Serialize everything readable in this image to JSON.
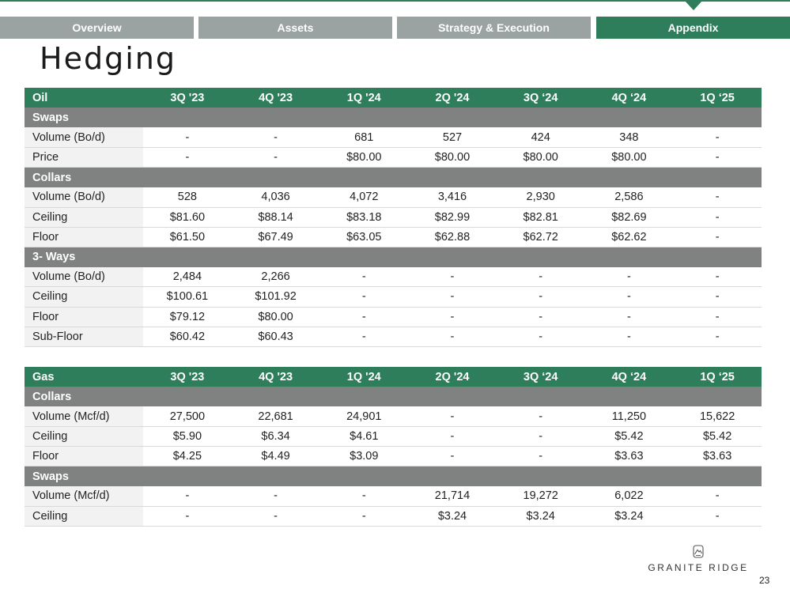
{
  "nav": {
    "tabs": [
      {
        "label": "Overview",
        "active": false
      },
      {
        "label": "Assets",
        "active": false
      },
      {
        "label": "Strategy & Execution",
        "active": false
      },
      {
        "label": "Appendix",
        "active": true
      }
    ]
  },
  "page": {
    "title": "Hedging",
    "number": "23"
  },
  "oil": {
    "header": [
      "Oil",
      "3Q '23",
      "4Q '23",
      "1Q '24",
      "2Q '24",
      "3Q ‘24",
      "4Q ‘24",
      "1Q ‘25"
    ],
    "sections": [
      {
        "title": "Swaps",
        "rows": [
          [
            "Volume (Bo/d)",
            "-",
            "-",
            "681",
            "527",
            "424",
            "348",
            "-"
          ],
          [
            "Price",
            "-",
            "-",
            "$80.00",
            "$80.00",
            "$80.00",
            "$80.00",
            "-"
          ]
        ]
      },
      {
        "title": "Collars",
        "rows": [
          [
            "Volume (Bo/d)",
            "528",
            "4,036",
            "4,072",
            "3,416",
            "2,930",
            "2,586",
            "-"
          ],
          [
            "Ceiling",
            "$81.60",
            "$88.14",
            "$83.18",
            "$82.99",
            "$82.81",
            "$82.69",
            "-"
          ],
          [
            "Floor",
            "$61.50",
            "$67.49",
            "$63.05",
            "$62.88",
            "$62.72",
            "$62.62",
            "-"
          ]
        ]
      },
      {
        "title": "3- Ways",
        "rows": [
          [
            "Volume (Bo/d)",
            "2,484",
            "2,266",
            "-",
            "-",
            "-",
            "-",
            "-"
          ],
          [
            "Ceiling",
            "$100.61",
            "$101.92",
            "-",
            "-",
            "-",
            "-",
            "-"
          ],
          [
            "Floor",
            "$79.12",
            "$80.00",
            "-",
            "-",
            "-",
            "-",
            "-"
          ],
          [
            "Sub-Floor",
            "$60.42",
            "$60.43",
            "-",
            "-",
            "-",
            "-",
            "-"
          ]
        ]
      }
    ]
  },
  "gas": {
    "header": [
      "Gas",
      "3Q '23",
      "4Q '23",
      "1Q '24",
      "2Q '24",
      "3Q ‘24",
      "4Q ‘24",
      "1Q ‘25"
    ],
    "sections": [
      {
        "title": "Collars",
        "rows": [
          [
            "Volume (Mcf/d)",
            "27,500",
            "22,681",
            "24,901",
            "-",
            "-",
            "11,250",
            "15,622"
          ],
          [
            "Ceiling",
            "$5.90",
            "$6.34",
            "$4.61",
            "-",
            "-",
            "$5.42",
            "$5.42"
          ],
          [
            "Floor",
            "$4.25",
            "$4.49",
            "$3.09",
            "-",
            "-",
            "$3.63",
            "$3.63"
          ]
        ]
      },
      {
        "title": "Swaps",
        "rows": [
          [
            "Volume (Mcf/d)",
            "-",
            "-",
            "-",
            "21,714",
            "19,272",
            "6,022",
            "-"
          ],
          [
            "Ceiling",
            "-",
            "-",
            "-",
            "$3.24",
            "$3.24",
            "$3.24",
            "-"
          ]
        ]
      }
    ]
  },
  "logo": {
    "text": "GRANITE RIDGE",
    "icon": "granite-ridge-mountain-icon"
  },
  "colors": {
    "accent_green": "#2e7d5b",
    "tab_grey": "#9aa3a1",
    "section_grey": "#7f8280",
    "label_bg": "#f2f2f2"
  }
}
